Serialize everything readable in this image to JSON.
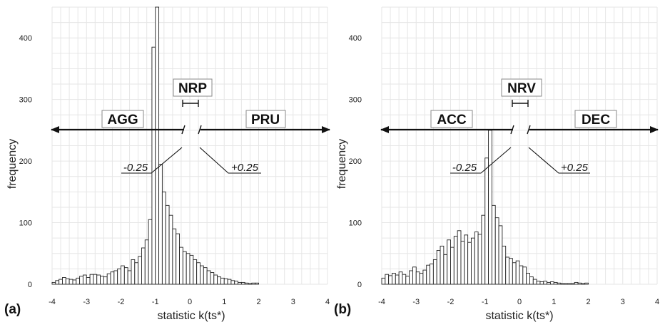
{
  "colors": {
    "bar_fill": "#ffffff",
    "bar_stroke": "#222222",
    "grid": "#e6e6e6",
    "text": "#111111"
  },
  "chart_data": [
    {
      "type": "bar",
      "panel_label": "(a)",
      "xlabel": "statistic k(ts*)",
      "ylabel": "frequency",
      "xlim": [
        -4,
        4
      ],
      "ylim": [
        0,
        450
      ],
      "xticks": [
        -4,
        -3,
        -2,
        -1,
        0,
        1,
        2,
        3,
        4
      ],
      "xtick_labels": [
        "-4",
        "-3",
        "-2",
        "-1",
        "0",
        "1",
        "2",
        "3",
        "4"
      ],
      "yticks": [
        0,
        100,
        200,
        300,
        400
      ],
      "ytick_labels": [
        "0",
        "100",
        "200",
        "300",
        "400"
      ],
      "grid": true,
      "bin_start": -4,
      "bin_width": 0.1,
      "values": [
        3,
        6,
        8,
        11,
        9,
        8,
        7,
        10,
        13,
        15,
        11,
        16,
        16,
        15,
        13,
        12,
        17,
        20,
        22,
        25,
        30,
        27,
        22,
        40,
        35,
        45,
        59,
        72,
        105,
        385,
        450,
        195,
        150,
        128,
        112,
        90,
        82,
        60,
        53,
        50,
        47,
        40,
        35,
        30,
        27,
        22,
        19,
        15,
        12,
        10,
        9,
        8,
        6,
        5,
        3,
        3,
        2,
        1,
        2,
        2
      ],
      "annotations": {
        "neutral_label": "NRP",
        "left_label": "AGG",
        "right_label": "PRU",
        "threshold_left": "-0.25",
        "threshold_right": "+0.25"
      }
    },
    {
      "type": "bar",
      "panel_label": "(b)",
      "xlabel": "statistic k(ts*)",
      "ylabel": "frequency",
      "xlim": [
        -4,
        4
      ],
      "ylim": [
        0,
        450
      ],
      "xticks": [
        -4,
        -3,
        -2,
        -1,
        0,
        1,
        2,
        3,
        4
      ],
      "xtick_labels": [
        "-4",
        "-3",
        "-2",
        "-1",
        "0",
        "1",
        "2",
        "3",
        "4"
      ],
      "yticks": [
        0,
        100,
        200,
        300,
        400
      ],
      "ytick_labels": [
        "0",
        "100",
        "200",
        "300",
        "400"
      ],
      "grid": true,
      "bin_start": -4,
      "bin_width": 0.1,
      "values": [
        10,
        16,
        14,
        18,
        15,
        20,
        16,
        13,
        22,
        28,
        20,
        18,
        23,
        31,
        33,
        40,
        55,
        62,
        48,
        72,
        60,
        78,
        87,
        70,
        80,
        68,
        75,
        85,
        81,
        112,
        205,
        250,
        128,
        108,
        95,
        62,
        44,
        42,
        35,
        38,
        30,
        28,
        18,
        12,
        8,
        5,
        4,
        5,
        3,
        4,
        3,
        2,
        1,
        1,
        1,
        1,
        3,
        2,
        1,
        2
      ],
      "annotations": {
        "neutral_label": "NRV",
        "left_label": "ACC",
        "right_label": "DEC",
        "threshold_left": "-0.25",
        "threshold_right": "+0.25"
      }
    }
  ]
}
